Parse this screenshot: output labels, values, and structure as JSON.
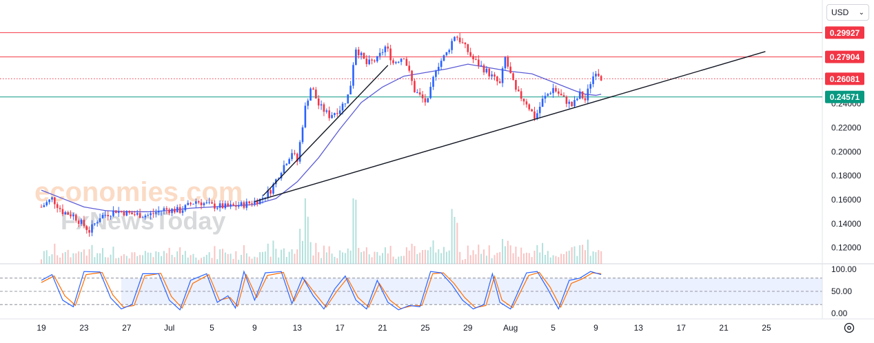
{
  "toolbar": {
    "currency": "USD"
  },
  "watermark": {
    "line1": "economies.com",
    "line2": "FxNewsToday"
  },
  "colors": {
    "up": "#2962ff",
    "down": "#f23645",
    "ma": "#5b5bd6",
    "resistance": "#f23645",
    "support": "#089981",
    "stoch_k": "#2962ff",
    "stoch_d": "#ff6d00"
  },
  "chart_data": {
    "type": "candlestick",
    "y_ticks": [
      0.12,
      0.14,
      0.16,
      0.18,
      0.2,
      0.22,
      0.24
    ],
    "y_tick_labels": [
      "0.12000",
      "0.14000",
      "0.16000",
      "0.18000",
      "0.20000",
      "0.22000",
      "0.24000"
    ],
    "ylim": [
      0.1055,
      0.3035
    ],
    "x_labels": [
      {
        "day": 0,
        "label": "19"
      },
      {
        "day": 4,
        "label": "23"
      },
      {
        "day": 8,
        "label": "27"
      },
      {
        "day": 12,
        "label": "Jul"
      },
      {
        "day": 16,
        "label": "5"
      },
      {
        "day": 20,
        "label": "9"
      },
      {
        "day": 24,
        "label": "13"
      },
      {
        "day": 28,
        "label": "17"
      },
      {
        "day": 32,
        "label": "21"
      },
      {
        "day": 36,
        "label": "25"
      },
      {
        "day": 40,
        "label": "29"
      },
      {
        "day": 44,
        "label": "Aug"
      },
      {
        "day": 48,
        "label": "5"
      },
      {
        "day": 52,
        "label": "9"
      },
      {
        "day": 56,
        "label": "13"
      },
      {
        "day": 60,
        "label": "17"
      },
      {
        "day": 64,
        "label": "21"
      },
      {
        "day": 68,
        "label": "25"
      }
    ],
    "horizontal_levels": [
      {
        "value": 0.29927,
        "label": "0.29927",
        "kind": "resistance",
        "style": "solid"
      },
      {
        "value": 0.27904,
        "label": "0.27904",
        "kind": "resistance",
        "style": "solid"
      },
      {
        "value": 0.26081,
        "label": "0.26081",
        "kind": "last-price",
        "style": "dotted"
      },
      {
        "value": 0.24571,
        "label": "0.24571",
        "kind": "support",
        "style": "solid"
      }
    ],
    "trendlines": [
      {
        "from": {
          "day": 20.0,
          "price": 0.1585
        },
        "to": {
          "day": 67.9,
          "price": 0.2835
        }
      },
      {
        "from": {
          "day": 20.8,
          "price": 0.1635
        },
        "to": {
          "day": 32.5,
          "price": 0.272
        }
      }
    ],
    "close_path": [
      {
        "day": 0.0,
        "price": 0.154
      },
      {
        "day": 1.0,
        "price": 0.161
      },
      {
        "day": 2.0,
        "price": 0.15
      },
      {
        "day": 3.0,
        "price": 0.147
      },
      {
        "day": 4.5,
        "price": 0.134
      },
      {
        "day": 5.5,
        "price": 0.146
      },
      {
        "day": 7.0,
        "price": 0.151
      },
      {
        "day": 8.5,
        "price": 0.148
      },
      {
        "day": 10.0,
        "price": 0.147
      },
      {
        "day": 11.5,
        "price": 0.152
      },
      {
        "day": 13.0,
        "price": 0.151
      },
      {
        "day": 14.5,
        "price": 0.159
      },
      {
        "day": 16.0,
        "price": 0.155
      },
      {
        "day": 17.5,
        "price": 0.154
      },
      {
        "day": 19.0,
        "price": 0.156
      },
      {
        "day": 20.5,
        "price": 0.16
      },
      {
        "day": 21.5,
        "price": 0.168
      },
      {
        "day": 22.5,
        "price": 0.185
      },
      {
        "day": 23.5,
        "price": 0.2
      },
      {
        "day": 24.0,
        "price": 0.192
      },
      {
        "day": 24.7,
        "price": 0.235
      },
      {
        "day": 25.3,
        "price": 0.255
      },
      {
        "day": 26.0,
        "price": 0.239
      },
      {
        "day": 27.0,
        "price": 0.23
      },
      {
        "day": 28.0,
        "price": 0.236
      },
      {
        "day": 28.7,
        "price": 0.245
      },
      {
        "day": 29.1,
        "price": 0.26
      },
      {
        "day": 29.4,
        "price": 0.288
      },
      {
        "day": 30.5,
        "price": 0.273
      },
      {
        "day": 31.5,
        "price": 0.277
      },
      {
        "day": 32.3,
        "price": 0.288
      },
      {
        "day": 33.0,
        "price": 0.274
      },
      {
        "day": 34.0,
        "price": 0.28
      },
      {
        "day": 35.0,
        "price": 0.251
      },
      {
        "day": 36.2,
        "price": 0.24
      },
      {
        "day": 37.0,
        "price": 0.27
      },
      {
        "day": 38.0,
        "price": 0.282
      },
      {
        "day": 38.8,
        "price": 0.298
      },
      {
        "day": 39.5,
        "price": 0.29
      },
      {
        "day": 40.5,
        "price": 0.277
      },
      {
        "day": 42.0,
        "price": 0.265
      },
      {
        "day": 43.0,
        "price": 0.256
      },
      {
        "day": 43.5,
        "price": 0.278
      },
      {
        "day": 44.5,
        "price": 0.25
      },
      {
        "day": 45.5,
        "price": 0.241
      },
      {
        "day": 46.3,
        "price": 0.228
      },
      {
        "day": 47.0,
        "price": 0.243
      },
      {
        "day": 48.0,
        "price": 0.253
      },
      {
        "day": 49.0,
        "price": 0.244
      },
      {
        "day": 49.8,
        "price": 0.238
      },
      {
        "day": 50.5,
        "price": 0.248
      },
      {
        "day": 51.0,
        "price": 0.243
      },
      {
        "day": 51.5,
        "price": 0.258
      },
      {
        "day": 52.0,
        "price": 0.268
      },
      {
        "day": 52.5,
        "price": 0.262
      }
    ],
    "moving_average": [
      {
        "day": 0,
        "price": 0.168
      },
      {
        "day": 2,
        "price": 0.161
      },
      {
        "day": 4,
        "price": 0.154
      },
      {
        "day": 6,
        "price": 0.151
      },
      {
        "day": 8,
        "price": 0.15
      },
      {
        "day": 10,
        "price": 0.15
      },
      {
        "day": 12,
        "price": 0.151
      },
      {
        "day": 14,
        "price": 0.153
      },
      {
        "day": 16,
        "price": 0.154
      },
      {
        "day": 18,
        "price": 0.155
      },
      {
        "day": 20,
        "price": 0.156
      },
      {
        "day": 22,
        "price": 0.161
      },
      {
        "day": 24,
        "price": 0.175
      },
      {
        "day": 26,
        "price": 0.195
      },
      {
        "day": 28,
        "price": 0.219
      },
      {
        "day": 30,
        "price": 0.241
      },
      {
        "day": 32,
        "price": 0.254
      },
      {
        "day": 34,
        "price": 0.263
      },
      {
        "day": 36,
        "price": 0.266
      },
      {
        "day": 38,
        "price": 0.269
      },
      {
        "day": 40,
        "price": 0.273
      },
      {
        "day": 42,
        "price": 0.27
      },
      {
        "day": 44,
        "price": 0.267
      },
      {
        "day": 46,
        "price": 0.265
      },
      {
        "day": 48,
        "price": 0.258
      },
      {
        "day": 50,
        "price": 0.251
      },
      {
        "day": 51,
        "price": 0.248
      },
      {
        "day": 52,
        "price": 0.247
      },
      {
        "day": 52.5,
        "price": 0.248
      }
    ],
    "stochastic": {
      "ylim": [
        0,
        100
      ],
      "y_ticks": [
        100,
        50,
        0
      ],
      "y_tick_labels": [
        "100.00",
        "50.00",
        "0.00"
      ],
      "bands": [
        80,
        50,
        20
      ],
      "k_path": [
        {
          "day": 0.0,
          "value": 75
        },
        {
          "day": 1.0,
          "value": 88
        },
        {
          "day": 2.0,
          "value": 30
        },
        {
          "day": 3.0,
          "value": 15
        },
        {
          "day": 4.0,
          "value": 95
        },
        {
          "day": 5.5,
          "value": 94
        },
        {
          "day": 6.5,
          "value": 35
        },
        {
          "day": 7.5,
          "value": 10
        },
        {
          "day": 8.5,
          "value": 20
        },
        {
          "day": 9.5,
          "value": 90
        },
        {
          "day": 11.0,
          "value": 90
        },
        {
          "day": 12.0,
          "value": 30
        },
        {
          "day": 13.0,
          "value": 8
        },
        {
          "day": 14.0,
          "value": 75
        },
        {
          "day": 15.5,
          "value": 90
        },
        {
          "day": 16.5,
          "value": 25
        },
        {
          "day": 17.5,
          "value": 40
        },
        {
          "day": 18.2,
          "value": 12
        },
        {
          "day": 19.0,
          "value": 95
        },
        {
          "day": 20.0,
          "value": 30
        },
        {
          "day": 21.0,
          "value": 92
        },
        {
          "day": 22.5,
          "value": 95
        },
        {
          "day": 23.5,
          "value": 22
        },
        {
          "day": 24.5,
          "value": 82
        },
        {
          "day": 25.5,
          "value": 40
        },
        {
          "day": 26.5,
          "value": 10
        },
        {
          "day": 27.5,
          "value": 55
        },
        {
          "day": 28.5,
          "value": 85
        },
        {
          "day": 29.5,
          "value": 30
        },
        {
          "day": 30.5,
          "value": 10
        },
        {
          "day": 31.5,
          "value": 75
        },
        {
          "day": 32.5,
          "value": 25
        },
        {
          "day": 33.5,
          "value": 8
        },
        {
          "day": 34.5,
          "value": 18
        },
        {
          "day": 35.5,
          "value": 15
        },
        {
          "day": 36.5,
          "value": 95
        },
        {
          "day": 37.5,
          "value": 92
        },
        {
          "day": 38.5,
          "value": 65
        },
        {
          "day": 39.5,
          "value": 30
        },
        {
          "day": 40.5,
          "value": 10
        },
        {
          "day": 41.5,
          "value": 20
        },
        {
          "day": 42.3,
          "value": 90
        },
        {
          "day": 43.0,
          "value": 25
        },
        {
          "day": 44.0,
          "value": 10
        },
        {
          "day": 45.5,
          "value": 92
        },
        {
          "day": 46.5,
          "value": 95
        },
        {
          "day": 47.5,
          "value": 55
        },
        {
          "day": 48.5,
          "value": 10
        },
        {
          "day": 49.5,
          "value": 75
        },
        {
          "day": 50.5,
          "value": 80
        },
        {
          "day": 51.5,
          "value": 95
        },
        {
          "day": 52.5,
          "value": 88
        }
      ],
      "d_path": [
        {
          "day": 0.0,
          "value": 70
        },
        {
          "day": 1.2,
          "value": 85
        },
        {
          "day": 2.2,
          "value": 40
        },
        {
          "day": 3.2,
          "value": 18
        },
        {
          "day": 4.2,
          "value": 88
        },
        {
          "day": 5.7,
          "value": 93
        },
        {
          "day": 6.7,
          "value": 42
        },
        {
          "day": 7.7,
          "value": 14
        },
        {
          "day": 8.7,
          "value": 18
        },
        {
          "day": 9.7,
          "value": 85
        },
        {
          "day": 11.2,
          "value": 91
        },
        {
          "day": 12.2,
          "value": 38
        },
        {
          "day": 13.2,
          "value": 12
        },
        {
          "day": 14.2,
          "value": 68
        },
        {
          "day": 15.7,
          "value": 88
        },
        {
          "day": 16.7,
          "value": 30
        },
        {
          "day": 17.7,
          "value": 36
        },
        {
          "day": 18.4,
          "value": 16
        },
        {
          "day": 19.2,
          "value": 88
        },
        {
          "day": 20.2,
          "value": 36
        },
        {
          "day": 21.2,
          "value": 86
        },
        {
          "day": 22.7,
          "value": 93
        },
        {
          "day": 23.7,
          "value": 28
        },
        {
          "day": 24.7,
          "value": 76
        },
        {
          "day": 25.7,
          "value": 44
        },
        {
          "day": 26.7,
          "value": 14
        },
        {
          "day": 27.7,
          "value": 50
        },
        {
          "day": 28.7,
          "value": 80
        },
        {
          "day": 29.7,
          "value": 36
        },
        {
          "day": 30.7,
          "value": 14
        },
        {
          "day": 31.7,
          "value": 68
        },
        {
          "day": 32.7,
          "value": 30
        },
        {
          "day": 33.7,
          "value": 11
        },
        {
          "day": 34.7,
          "value": 17
        },
        {
          "day": 35.7,
          "value": 18
        },
        {
          "day": 36.7,
          "value": 90
        },
        {
          "day": 37.7,
          "value": 92
        },
        {
          "day": 38.7,
          "value": 68
        },
        {
          "day": 39.7,
          "value": 36
        },
        {
          "day": 40.7,
          "value": 13
        },
        {
          "day": 41.7,
          "value": 18
        },
        {
          "day": 42.5,
          "value": 84
        },
        {
          "day": 43.2,
          "value": 30
        },
        {
          "day": 44.2,
          "value": 13
        },
        {
          "day": 45.7,
          "value": 86
        },
        {
          "day": 46.7,
          "value": 93
        },
        {
          "day": 47.7,
          "value": 60
        },
        {
          "day": 48.7,
          "value": 14
        },
        {
          "day": 49.7,
          "value": 68
        },
        {
          "day": 50.7,
          "value": 78
        },
        {
          "day": 51.7,
          "value": 92
        },
        {
          "day": 52.5,
          "value": 90
        }
      ]
    }
  }
}
